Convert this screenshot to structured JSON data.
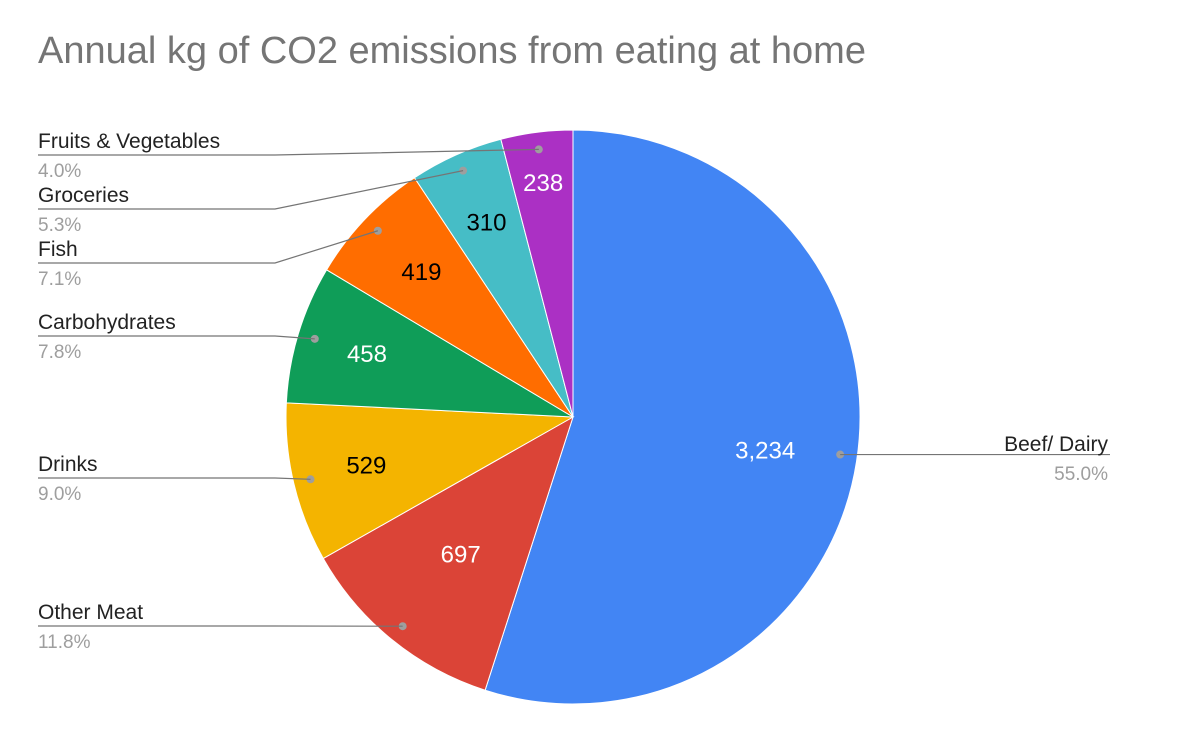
{
  "chart_data": {
    "type": "pie",
    "title": "Annual kg of CO2 emissions from eating at home",
    "slices": [
      {
        "name": "Beef/ Dairy",
        "value": 3234,
        "value_label": "3,234",
        "percent": "55.0%",
        "color": "#4285f4",
        "value_color": "#ffffff"
      },
      {
        "name": "Other Meat",
        "value": 697,
        "value_label": "697",
        "percent": "11.8%",
        "color": "#db4437",
        "value_color": "#ffffff"
      },
      {
        "name": "Drinks",
        "value": 529,
        "value_label": "529",
        "percent": "9.0%",
        "color": "#f4b400",
        "value_color": "#000000"
      },
      {
        "name": "Carbohydrates",
        "value": 458,
        "value_label": "458",
        "percent": "7.8%",
        "color": "#0f9d58",
        "value_color": "#ffffff"
      },
      {
        "name": "Fish",
        "value": 419,
        "value_label": "419",
        "percent": "7.1%",
        "color": "#ff6d00",
        "value_color": "#000000"
      },
      {
        "name": "Groceries",
        "value": 310,
        "value_label": "310",
        "percent": "5.3%",
        "color": "#46bdc6",
        "value_color": "#000000"
      },
      {
        "name": "Fruits & Vegetables",
        "value": 238,
        "value_label": "238",
        "percent": "4.0%",
        "color": "#ab30c4",
        "value_color": "#ffffff"
      }
    ]
  }
}
